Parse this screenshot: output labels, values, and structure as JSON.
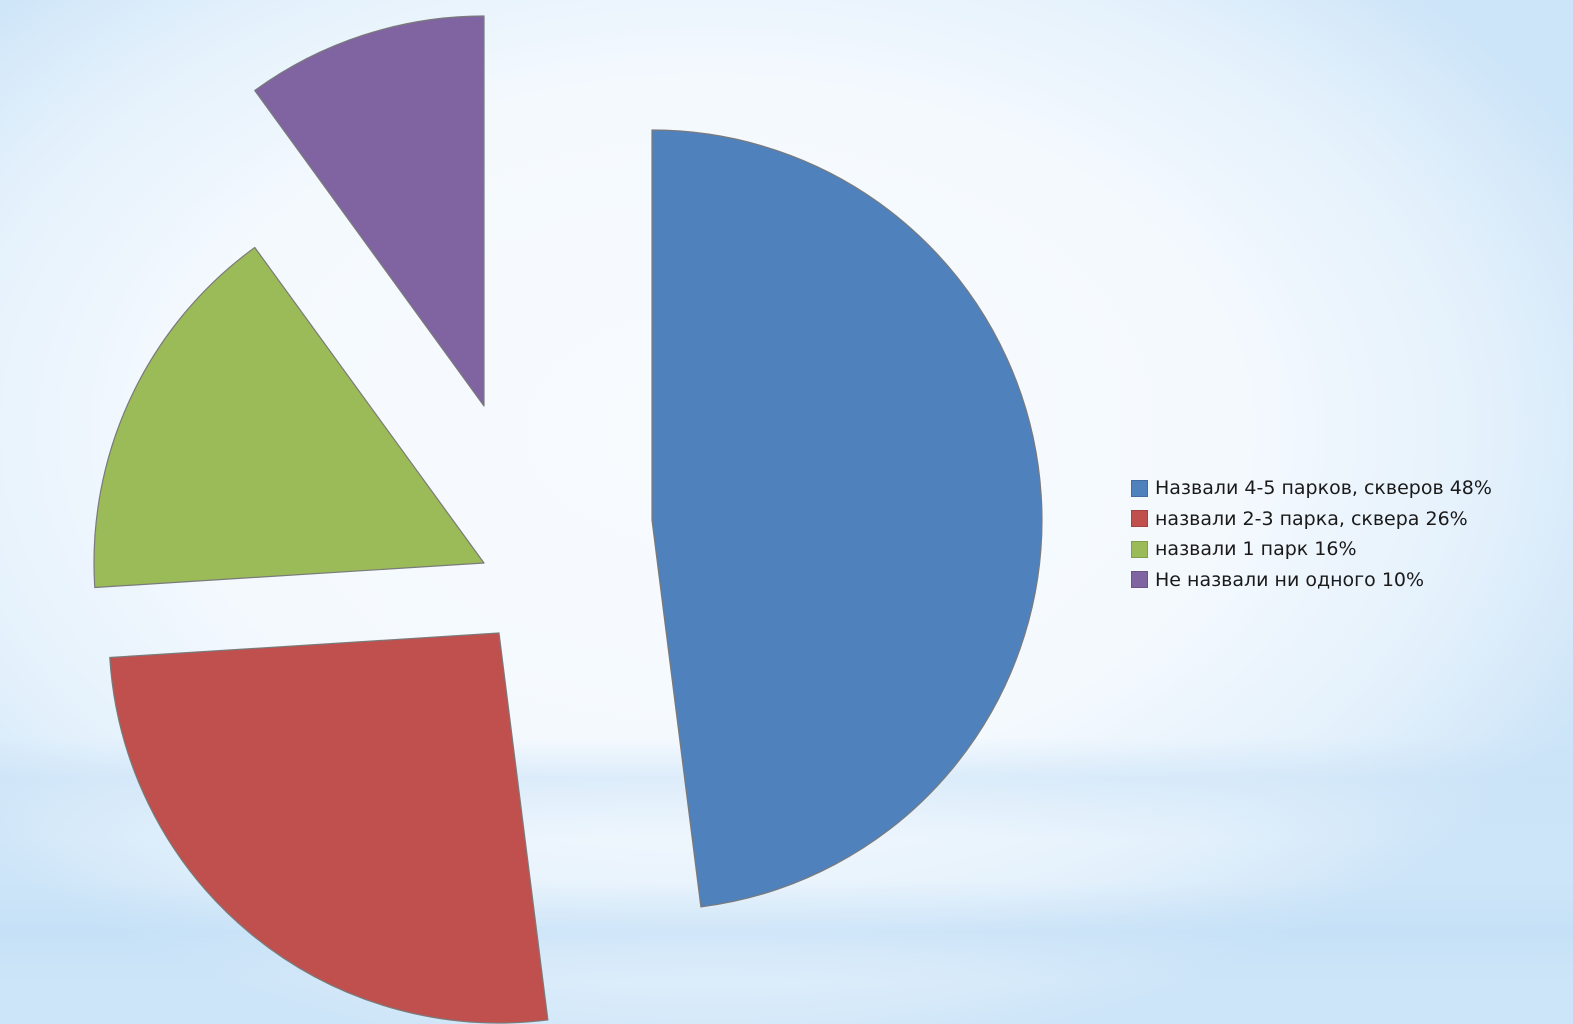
{
  "chart_data": {
    "type": "pie",
    "exploded": true,
    "start_angle_deg": 0,
    "direction": "clockwise",
    "slices": [
      {
        "label": "Назвали 4-5 парков, скверов 48%",
        "value": 48,
        "color": "#4f81bd"
      },
      {
        "label": "назвали 2-3 парка, сквера 26%",
        "value": 26,
        "color": "#c0504d"
      },
      {
        "label": "назвали 1 парк 16%",
        "value": 16,
        "color": "#9bbb59"
      },
      {
        "label": "Не назвали ни одного 10%",
        "value": 10,
        "color": "#8064a2"
      }
    ],
    "legend_position": "right"
  }
}
